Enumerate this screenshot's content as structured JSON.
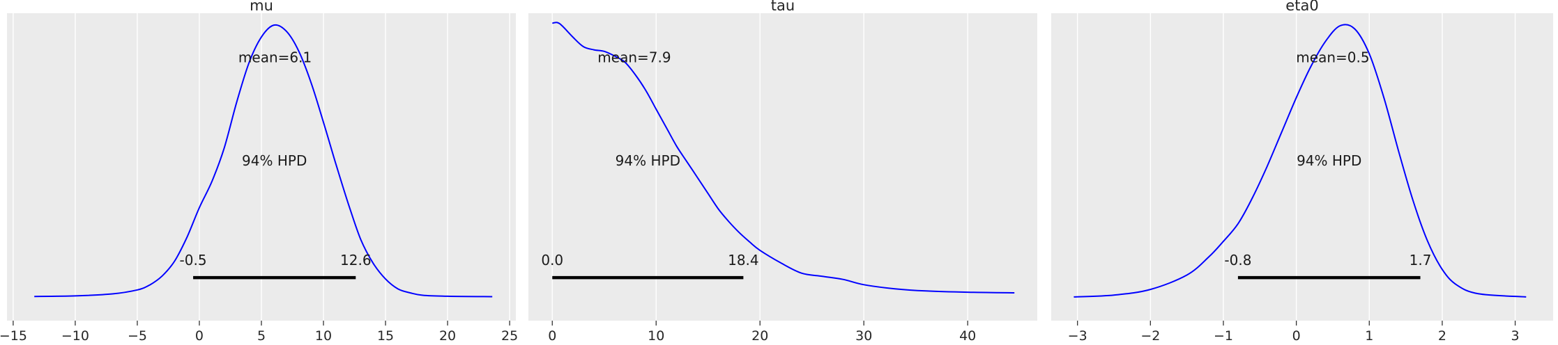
{
  "chart_data": [
    {
      "type": "line",
      "title": "mu",
      "xlim": [
        -15.5,
        25.5
      ],
      "xticks": [
        -15,
        -10,
        -5,
        0,
        5,
        10,
        15,
        20,
        25
      ],
      "xtick_labels": [
        "−15",
        "−10",
        "−5",
        "0",
        "5",
        "10",
        "15",
        "20",
        "25"
      ],
      "grid": true,
      "series": [
        {
          "x": [
            -13.3,
            -10,
            -7,
            -5,
            -4,
            -3,
            -2,
            -1,
            0,
            1,
            2,
            3,
            4,
            5,
            6,
            7,
            8,
            9,
            10,
            11,
            12,
            13,
            14,
            15,
            16,
            17,
            18,
            20,
            23.6
          ],
          "y": [
            0.0002,
            0.0005,
            0.0015,
            0.0035,
            0.006,
            0.0105,
            0.018,
            0.03,
            0.045,
            0.058,
            0.075,
            0.098,
            0.118,
            0.131,
            0.137,
            0.134,
            0.124,
            0.108,
            0.088,
            0.067,
            0.047,
            0.029,
            0.017,
            0.009,
            0.004,
            0.002,
            0.0008,
            0.0003,
            0.0001
          ]
        }
      ],
      "ylim": [
        -0.012,
        0.143
      ],
      "annotations": {
        "mean_label": "mean=6.1",
        "hpd_label": "94% HPD",
        "hpd_low_label": "-0.5",
        "hpd_high_label": "12.6"
      },
      "mean": 6.1,
      "hpd": [
        -0.5,
        12.6
      ]
    },
    {
      "type": "line",
      "title": "tau",
      "xlim": [
        -2.3,
        46.7
      ],
      "xticks": [
        0,
        10,
        20,
        30,
        40
      ],
      "xtick_labels": [
        "0",
        "10",
        "20",
        "30",
        "40"
      ],
      "grid": true,
      "series": [
        {
          "x": [
            0,
            0.5,
            1,
            2,
            3,
            4,
            5,
            6,
            7,
            8,
            9,
            10,
            11,
            12,
            13,
            14,
            15,
            16,
            17,
            18,
            19,
            20,
            22,
            24,
            26,
            28,
            30,
            33,
            36,
            40,
            44.5
          ],
          "y": [
            0.0875,
            0.0877,
            0.0865,
            0.083,
            0.08,
            0.079,
            0.0785,
            0.077,
            0.075,
            0.071,
            0.066,
            0.06,
            0.054,
            0.048,
            0.043,
            0.038,
            0.033,
            0.028,
            0.024,
            0.0205,
            0.0175,
            0.0148,
            0.0108,
            0.0075,
            0.0065,
            0.0055,
            0.0038,
            0.0025,
            0.0018,
            0.0014,
            0.0012
          ]
        }
      ],
      "ylim": [
        -0.0077,
        0.0907
      ],
      "annotations": {
        "mean_label": "mean=7.9",
        "hpd_label": "94% HPD",
        "hpd_low_label": "0.0",
        "hpd_high_label": "18.4"
      },
      "mean": 7.9,
      "hpd": [
        0.0,
        18.4
      ]
    },
    {
      "type": "line",
      "title": "eta0",
      "xlim": [
        -3.36,
        3.52
      ],
      "xticks": [
        -3,
        -2,
        -1,
        0,
        1,
        2,
        3
      ],
      "xtick_labels": [
        "−3",
        "−2",
        "−1",
        "0",
        "1",
        "2",
        "3"
      ],
      "grid": true,
      "series": [
        {
          "x": [
            -3.05,
            -2.5,
            -2,
            -1.5,
            -1.2,
            -1,
            -0.8,
            -0.6,
            -0.4,
            -0.2,
            0,
            0.2,
            0.4,
            0.6,
            0.8,
            1,
            1.2,
            1.4,
            1.6,
            1.8,
            2,
            2.2,
            2.5,
            3.15
          ],
          "y": [
            0.001,
            0.004,
            0.013,
            0.036,
            0.065,
            0.09,
            0.118,
            0.16,
            0.21,
            0.265,
            0.32,
            0.37,
            0.41,
            0.435,
            0.43,
            0.39,
            0.32,
            0.235,
            0.155,
            0.09,
            0.045,
            0.02,
            0.006,
            0.001
          ]
        }
      ],
      "ylim": [
        -0.037,
        0.455
      ],
      "annotations": {
        "mean_label": "mean=0.5",
        "hpd_label": "94% HPD",
        "hpd_low_label": "-0.8",
        "hpd_high_label": "1.7"
      },
      "mean": 0.5,
      "hpd": [
        -0.8,
        1.7
      ]
    }
  ]
}
